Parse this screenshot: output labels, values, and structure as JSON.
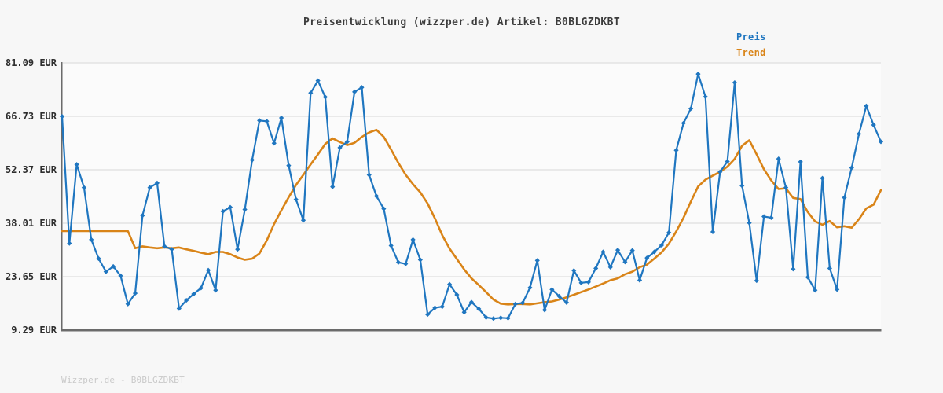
{
  "title": "Preisentwicklung (wizzper.de) Artikel: B0BLGZDKBT",
  "footer": "Wizzper.de - B0BLGZDKBT",
  "legend": [
    {
      "label": "Preis",
      "color": "#1f76c0"
    },
    {
      "label": "Trend",
      "color": "#d98418"
    }
  ],
  "colors": {
    "background": "#f7f7f7",
    "plot_background": "#fbfbfb",
    "gridline": "#e3e3e3",
    "axis": "#6b6b6b",
    "tick_label": "#2e2e2e",
    "title_text": "#3c3c3c",
    "footer_text": "#c9c9c9",
    "price_line": "#1f76c0",
    "trend_line": "#d98418"
  },
  "chart_data": {
    "type": "line",
    "title": "Preisentwicklung (wizzper.de) Artikel: B0BLGZDKBT",
    "xlabel": "",
    "ylabel": "",
    "x_axis_labels": "none",
    "ylim": [
      9.29,
      81.09
    ],
    "grid": "horizontal-only",
    "legend_position": "top-right",
    "currency": "EUR",
    "y_ticks": [
      {
        "label": "81.09 EUR",
        "value": 81.09
      },
      {
        "label": "66.73 EUR",
        "value": 66.73
      },
      {
        "label": "52.37 EUR",
        "value": 52.37
      },
      {
        "label": "38.01 EUR",
        "value": 38.01
      },
      {
        "label": "23.65 EUR",
        "value": 23.65
      },
      {
        "label": "9.29 EUR",
        "value": 9.29
      }
    ],
    "series": [
      {
        "name": "Preis",
        "color": "#1f76c0",
        "style": "line-with-markers",
        "marker": "diamond",
        "values": [
          66.7,
          32.6,
          53.8,
          47.6,
          33.6,
          28.5,
          25.0,
          26.4,
          23.9,
          16.3,
          19.2,
          40.1,
          47.6,
          48.8,
          31.8,
          31.0,
          15.1,
          17.3,
          19.0,
          20.6,
          25.4,
          20.0,
          41.2,
          42.3,
          31.0,
          41.7,
          55.0,
          65.6,
          65.4,
          59.5,
          66.3,
          53.5,
          44.4,
          38.8,
          73.0,
          76.3,
          71.9,
          47.8,
          58.3,
          59.9,
          73.3,
          74.5,
          51.0,
          45.3,
          41.9,
          32.0,
          27.5,
          27.1,
          33.6,
          28.2,
          13.5,
          15.3,
          15.6,
          21.6,
          18.8,
          14.1,
          16.8,
          15.0,
          12.7,
          12.4,
          12.6,
          12.5,
          16.3,
          16.6,
          20.7,
          28.0,
          14.7,
          20.2,
          18.4,
          16.7,
          25.3,
          22.0,
          22.2,
          25.9,
          30.3,
          26.2,
          30.8,
          27.6,
          30.7,
          22.7,
          28.7,
          30.3,
          32.1,
          35.5,
          57.6,
          64.9,
          68.8,
          78.1,
          72.0,
          35.7,
          51.8,
          54.6,
          75.8,
          48.1,
          38.1,
          22.6,
          39.8,
          39.5,
          55.3,
          47.6,
          25.7,
          54.5,
          23.5,
          20.0,
          50.1,
          25.9,
          20.2,
          44.9,
          52.9,
          62.0,
          69.5,
          64.4,
          59.9
        ]
      },
      {
        "name": "Trend",
        "color": "#d98418",
        "style": "line",
        "marker": "none",
        "values": [
          35.9,
          35.9,
          35.9,
          35.9,
          35.9,
          35.9,
          35.9,
          35.9,
          35.9,
          35.9,
          31.3,
          31.8,
          31.5,
          31.3,
          31.5,
          31.3,
          31.5,
          31.0,
          30.6,
          30.1,
          29.7,
          30.3,
          30.3,
          29.7,
          28.8,
          28.2,
          28.5,
          29.9,
          33.4,
          37.8,
          41.5,
          45.0,
          48.3,
          51.0,
          53.8,
          56.5,
          59.3,
          60.8,
          59.8,
          59.0,
          59.6,
          61.2,
          62.4,
          63.1,
          61.2,
          57.8,
          54.2,
          51.0,
          48.5,
          46.3,
          43.3,
          39.3,
          34.8,
          31.2,
          28.4,
          25.6,
          23.2,
          21.4,
          19.5,
          17.5,
          16.4,
          16.2,
          16.3,
          16.3,
          16.2,
          16.5,
          16.8,
          17.0,
          17.5,
          18.1,
          18.8,
          19.5,
          20.2,
          21.0,
          21.8,
          22.7,
          23.2,
          24.3,
          25.0,
          26.2,
          26.9,
          28.5,
          30.2,
          32.5,
          35.8,
          39.5,
          43.8,
          47.9,
          49.7,
          50.8,
          51.8,
          53.2,
          55.3,
          58.8,
          60.3,
          56.5,
          52.5,
          49.5,
          47.2,
          47.4,
          44.8,
          44.5,
          41.0,
          38.5,
          37.6,
          38.6,
          36.9,
          37.2,
          36.8,
          39.1,
          42.0,
          43.0,
          46.9
        ]
      }
    ]
  }
}
